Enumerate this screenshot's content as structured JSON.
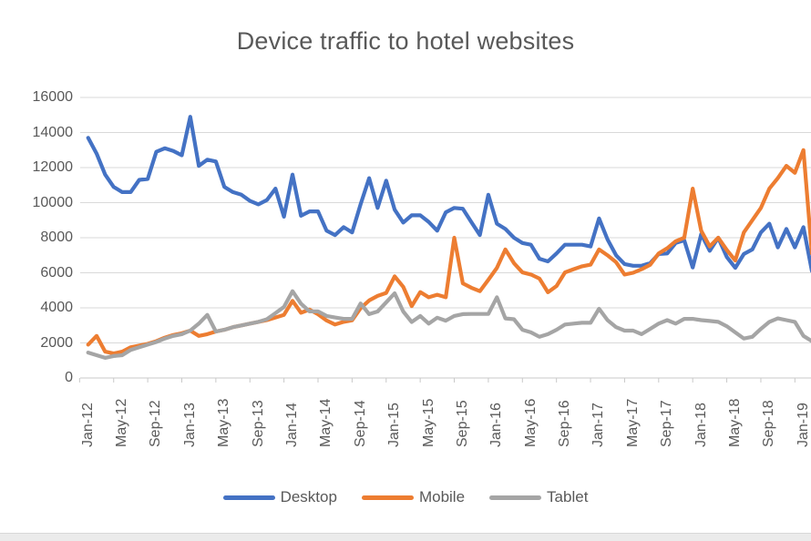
{
  "chart_data": {
    "type": "line",
    "title": "Device traffic to hotel websites",
    "xlabel": "",
    "ylabel": "",
    "ylim": [
      0,
      16000
    ],
    "y_ticks": [
      0,
      2000,
      4000,
      6000,
      8000,
      10000,
      12000,
      14000,
      16000
    ],
    "grid": "horizontal",
    "legend_position": "bottom",
    "x_label_rotation": -90,
    "x_tick_every": 4,
    "x_tick_labels": [
      "Jan-12",
      "May-12",
      "Sep-12",
      "Jan-13",
      "May-13",
      "Sep-13",
      "Jan-14",
      "May-14",
      "Sep-14",
      "Jan-15",
      "May-15",
      "Sep-15",
      "Jan-16",
      "May-16",
      "Sep-16",
      "Jan-17",
      "May-17",
      "Sep-17",
      "Jan-18",
      "May-18",
      "Sep-18",
      "Jan-19"
    ],
    "categories": [
      "Jan-12",
      "Feb-12",
      "Mar-12",
      "Apr-12",
      "May-12",
      "Jun-12",
      "Jul-12",
      "Aug-12",
      "Sep-12",
      "Oct-12",
      "Nov-12",
      "Dec-12",
      "Jan-13",
      "Feb-13",
      "Mar-13",
      "Apr-13",
      "May-13",
      "Jun-13",
      "Jul-13",
      "Aug-13",
      "Sep-13",
      "Oct-13",
      "Nov-13",
      "Dec-13",
      "Jan-14",
      "Feb-14",
      "Mar-14",
      "Apr-14",
      "May-14",
      "Jun-14",
      "Jul-14",
      "Aug-14",
      "Sep-14",
      "Oct-14",
      "Nov-14",
      "Dec-14",
      "Jan-15",
      "Feb-15",
      "Mar-15",
      "Apr-15",
      "May-15",
      "Jun-15",
      "Jul-15",
      "Aug-15",
      "Sep-15",
      "Oct-15",
      "Nov-15",
      "Dec-15",
      "Jan-16",
      "Feb-16",
      "Mar-16",
      "Apr-16",
      "May-16",
      "Jun-16",
      "Jul-16",
      "Aug-16",
      "Sep-16",
      "Oct-16",
      "Nov-16",
      "Dec-16",
      "Jan-17",
      "Feb-17",
      "Mar-17",
      "Apr-17",
      "May-17",
      "Jun-17",
      "Jul-17",
      "Aug-17",
      "Sep-17",
      "Oct-17",
      "Nov-17",
      "Dec-17",
      "Jan-18",
      "Feb-18",
      "Mar-18",
      "Apr-18",
      "May-18",
      "Jun-18",
      "Jul-18",
      "Aug-18",
      "Sep-18",
      "Oct-18",
      "Nov-18",
      "Dec-18",
      "Jan-19",
      "Feb-19"
    ],
    "series": [
      {
        "name": "Desktop",
        "color": "#4472C4",
        "values": [
          13700,
          12800,
          11600,
          10900,
          10600,
          10600,
          11300,
          11350,
          12900,
          13100,
          12950,
          12700,
          14900,
          12100,
          12450,
          12350,
          10900,
          10600,
          10450,
          10100,
          9900,
          10150,
          10800,
          9200,
          11600,
          9250,
          9500,
          9500,
          8400,
          8150,
          8600,
          8300,
          9900,
          11400,
          9700,
          11250,
          9600,
          8860,
          9280,
          9280,
          8900,
          8400,
          9450,
          9700,
          9650,
          8900,
          8150,
          10450,
          8800,
          8500,
          8000,
          7700,
          7600,
          6800,
          6650,
          7100,
          7600,
          7600,
          7600,
          7500,
          9100,
          7900,
          7000,
          6500,
          6400,
          6400,
          6550,
          7070,
          7100,
          7700,
          7850,
          6300,
          8200,
          7250,
          8000,
          6900,
          6280,
          7070,
          7330,
          8300,
          8800,
          7450,
          8500,
          7450,
          8600,
          6100
        ]
      },
      {
        "name": "Mobile",
        "color": "#ED7D31",
        "values": [
          1900,
          2400,
          1500,
          1400,
          1500,
          1750,
          1850,
          1950,
          2100,
          2300,
          2450,
          2550,
          2700,
          2400,
          2500,
          2650,
          2750,
          2900,
          3000,
          3100,
          3200,
          3300,
          3450,
          3600,
          4400,
          3720,
          3900,
          3630,
          3280,
          3050,
          3200,
          3290,
          3980,
          4420,
          4680,
          4850,
          5800,
          5200,
          4100,
          4900,
          4600,
          4750,
          4600,
          8000,
          5400,
          5150,
          4950,
          5600,
          6280,
          7330,
          6550,
          6020,
          5900,
          5670,
          4890,
          5240,
          6020,
          6200,
          6370,
          6460,
          7330,
          7000,
          6600,
          5900,
          6000,
          6200,
          6450,
          7100,
          7400,
          7800,
          8000,
          10800,
          8400,
          7500,
          8000,
          7300,
          6700,
          8300,
          9000,
          9700,
          10800,
          11400,
          12100,
          11700,
          13000,
          7100
        ]
      },
      {
        "name": "Tablet",
        "color": "#A5A5A5",
        "values": [
          1450,
          1300,
          1150,
          1250,
          1300,
          1600,
          1750,
          1900,
          2050,
          2250,
          2400,
          2500,
          2700,
          3100,
          3600,
          2650,
          2750,
          2900,
          3000,
          3100,
          3200,
          3350,
          3700,
          4050,
          4950,
          4240,
          3800,
          3800,
          3540,
          3450,
          3370,
          3370,
          4250,
          3640,
          3790,
          4310,
          4830,
          3790,
          3190,
          3540,
          3100,
          3440,
          3270,
          3540,
          3640,
          3650,
          3650,
          3650,
          4600,
          3400,
          3350,
          2750,
          2600,
          2350,
          2500,
          2750,
          3050,
          3100,
          3150,
          3150,
          3950,
          3300,
          2900,
          2700,
          2700,
          2500,
          2800,
          3100,
          3300,
          3100,
          3370,
          3370,
          3300,
          3250,
          3200,
          2950,
          2600,
          2250,
          2350,
          2800,
          3200,
          3400,
          3300,
          3200,
          2400,
          2100
        ]
      }
    ],
    "colors": {
      "text": "#595959",
      "gridline": "#D9D9D9",
      "axis": "#C9C9C9"
    }
  }
}
